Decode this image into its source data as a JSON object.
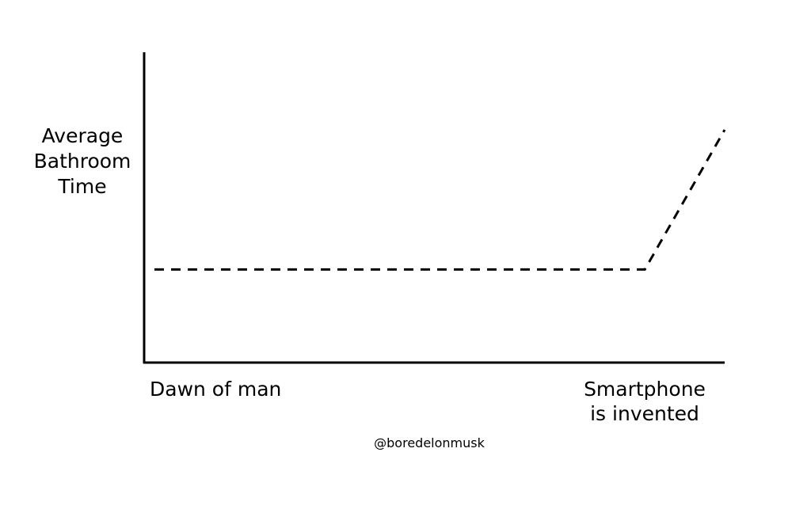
{
  "chart_data": {
    "type": "line",
    "ylabel_lines": [
      "Average",
      "Bathroom",
      "Time"
    ],
    "xtick_start": "Dawn of man",
    "xtick_end_lines": [
      "Smartphone",
      "is invented"
    ],
    "credit": "@boredelonmusk",
    "x": [
      0,
      0.86,
      1
    ],
    "y": [
      0.3,
      0.3,
      0.75
    ],
    "xlim": [
      0,
      1
    ],
    "ylim": [
      0,
      1
    ],
    "line_style": "dashed",
    "grid": false,
    "line_color": "#000000"
  }
}
